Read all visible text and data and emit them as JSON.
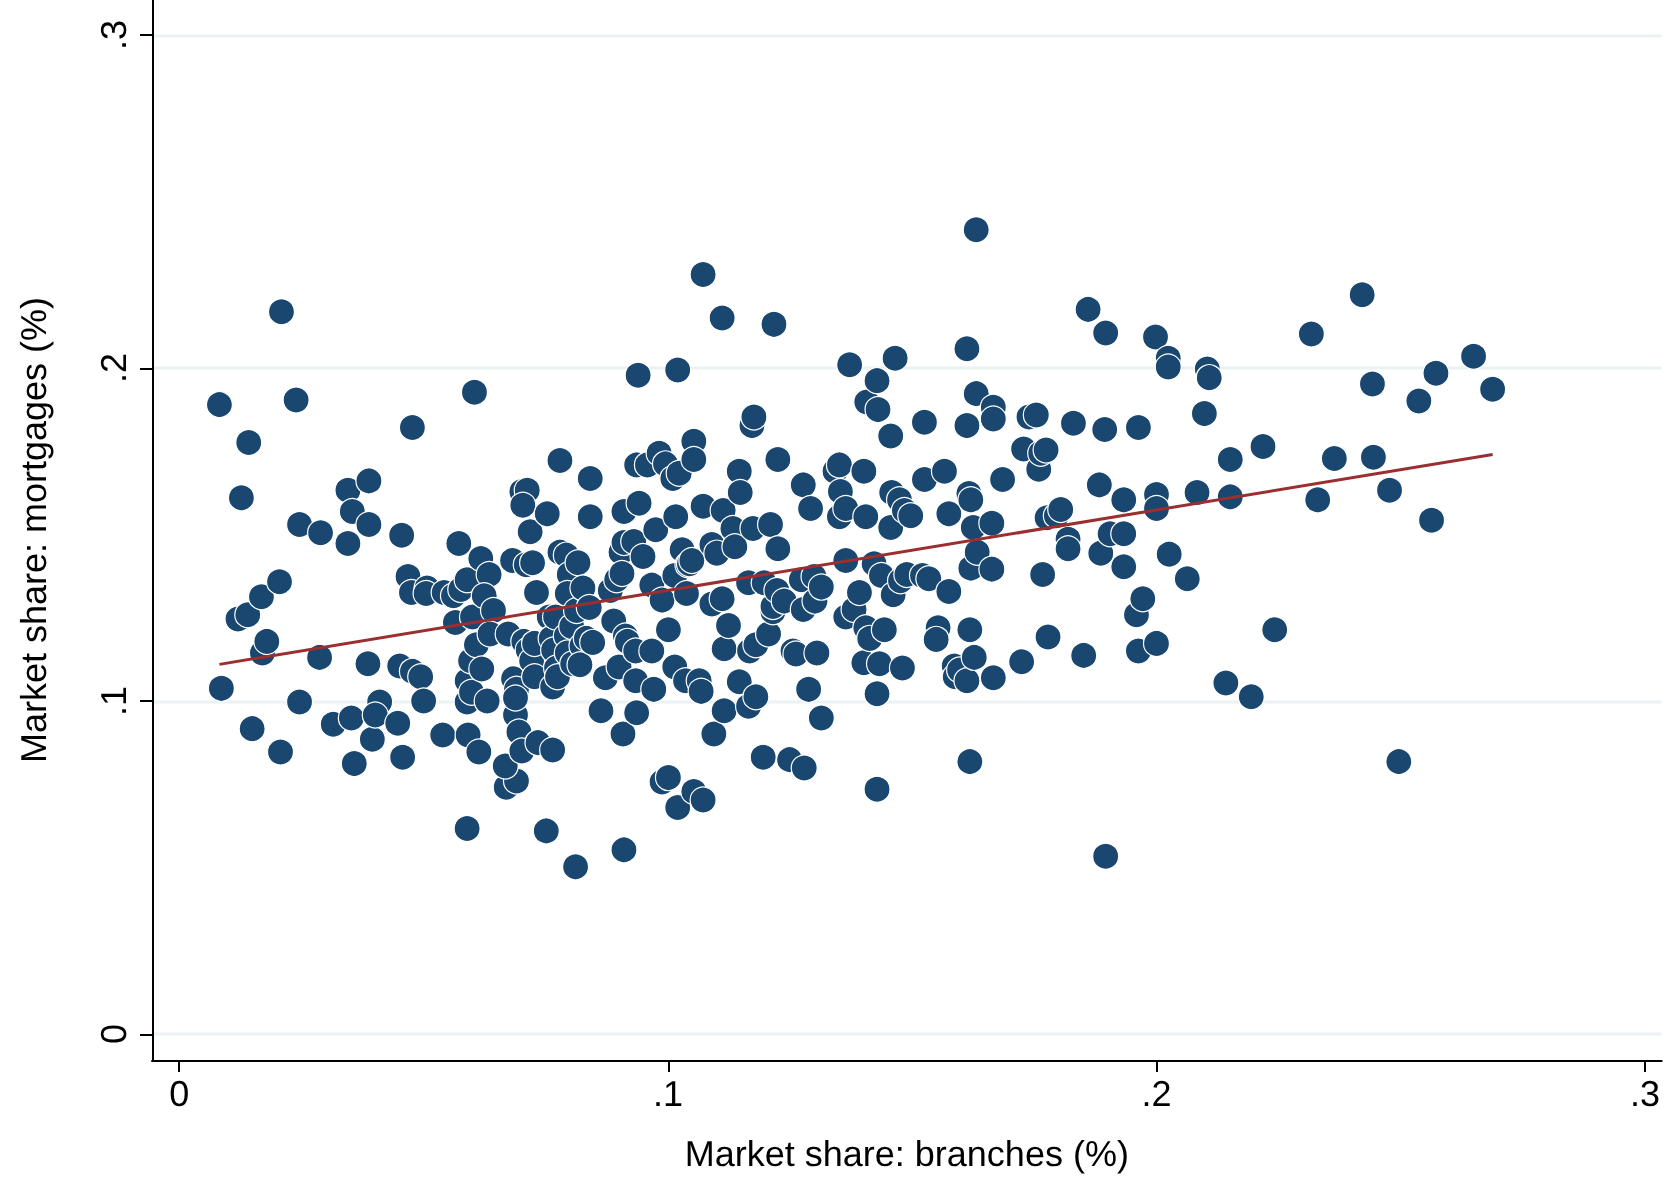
{
  "chart_data": {
    "type": "scatter",
    "xlabel": "Market share: branches (%)",
    "ylabel": "Market share: mortgages (%)",
    "xlim": [
      -0.0056,
      0.3034
    ],
    "ylim": [
      -0.0078,
      0.3105
    ],
    "xticks": [
      0,
      {
        "value": 0.1,
        "label": ".1"
      },
      {
        "value": 0.2,
        "label": ".2"
      },
      {
        "value": 0.3,
        "label": ".3"
      }
    ],
    "yticks": [
      0,
      {
        "value": 0.1,
        "label": ".1"
      },
      {
        "value": 0.2,
        "label": ".2"
      },
      {
        "value": 0.3,
        "label": ".3"
      }
    ],
    "grid": "y",
    "marker": "circle",
    "series": [
      {
        "color": "#1a476f",
        "x": [
          0.0082,
          0.0086,
          0.0127,
          0.0142,
          0.012,
          0.014,
          0.0149,
          0.0168,
          0.017,
          0.0179,
          0.0205,
          0.0207,
          0.0209,
          0.0239,
          0.0246,
          0.0246,
          0.0289,
          0.0287,
          0.0315,
          0.0345,
          0.0354,
          0.0345,
          0.0388,
          0.0388,
          0.0352,
          0.0358,
          0.0386,
          0.0395,
          0.041,
          0.0401,
          0.0447,
          0.0457,
          0.0455,
          0.0477,
          0.0468,
          0.0475,
          0.0507,
          0.0505,
          0.0451,
          0.0477,
          0.0494,
          0.05,
          0.0539,
          0.0542,
          0.0565,
          0.0561,
          0.0572,
          0.0576,
          0.0589,
          0.0589,
          0.0591,
          0.0604,
          0.0589,
          0.0589,
          0.0598,
          0.0596,
          0.0608,
          0.06,
          0.0617,
          0.0634,
          0.0624,
          0.0613,
          0.063,
          0.0619,
          0.0643,
          0.0636,
          0.0669,
          0.069,
          0.0667,
          0.0673,
          0.0682,
          0.0684,
          0.069,
          0.0688,
          0.0695,
          0.0701,
          0.0688,
          0.0701,
          0.0712,
          0.0703,
          0.071,
          0.0718,
          0.0723,
          0.0705,
          0.0714,
          0.0721,
          0.0727,
          0.0731,
          0.0727,
          0.0734,
          0.0751,
          0.0764,
          0.0753,
          0.0757,
          0.0761,
          0.0766,
          0.0764,
          0.0779,
          0.0779,
          0.0792,
          0.0798,
          0.0794,
          0.077,
          0.0772,
          0.0774,
          0.0792,
          0.0794,
          0.0803,
          0.0805,
          0.0813,
          0.0811,
          0.0816,
          0.0826,
          0.0824,
          0.082,
          0.0833,
          0.0841,
          0.0841,
          0.0839,
          0.0846,
          0.0863,
          0.0872,
          0.0882,
          0.0895,
          0.0889,
          0.0904,
          0.091,
          0.091,
          0.0906,
          0.0913,
          0.09,
          0.0917,
          0.0908,
          0.091,
          0.0936,
          0.0941,
          0.0939,
          0.093,
          0.0934,
          0.0934,
          0.0936,
          0.0949,
          0.0958,
          0.0967,
          0.0967,
          0.0971,
          0.0975,
          0.0982,
          0.0988,
          0.0988,
          0.1001,
          0.0995,
          0.1001,
          0.1014,
          0.1014,
          0.1016,
          0.102,
          0.102,
          0.101,
          0.1023,
          0.1029,
          0.1036,
          0.1038,
          0.1041,
          0.1053,
          0.1053,
          0.1044,
          0.1049,
          0.1053,
          0.1064,
          0.1068,
          0.1072,
          0.1072,
          0.1072,
          0.109,
          0.109,
          0.1094,
          0.11,
          0.1111,
          0.1111,
          0.1115,
          0.1113,
          0.1115,
          0.1124,
          0.1133,
          0.1137,
          0.1146,
          0.1148,
          0.1146,
          0.1165,
          0.1165,
          0.1172,
          0.1176,
          0.1174,
          0.1167,
          0.118,
          0.118,
          0.1195,
          0.1197,
          0.1206,
          0.121,
          0.1217,
          0.1215,
          0.1215,
          0.1225,
          0.1225,
          0.1223,
          0.1238,
          0.1249,
          0.1256,
          0.1262,
          0.1277,
          0.1273,
          0.1279,
          0.1277,
          0.1288,
          0.1292,
          0.1299,
          0.1301,
          0.1305,
          0.1314,
          0.1314,
          0.1342,
          0.1351,
          0.1351,
          0.1353,
          0.1364,
          0.1364,
          0.1364,
          0.1372,
          0.1381,
          0.1392,
          0.1401,
          0.1401,
          0.1405,
          0.1407,
          0.1405,
          0.1413,
          0.1422,
          0.1428,
          0.143,
          0.1428,
          0.1428,
          0.1433,
          0.1437,
          0.1443,
          0.1456,
          0.1458,
          0.1465,
          0.1456,
          0.1461,
          0.1474,
          0.1476,
          0.148,
          0.1484,
          0.1489,
          0.1497,
          0.1521,
          0.1525,
          0.1525,
          0.1534,
          0.1553,
          0.1549,
          0.1566,
          0.1575,
          0.1575,
          0.1586,
          0.1588,
          0.1597,
          0.1612,
          0.1612,
          0.1612,
          0.1616,
          0.1618,
          0.162,
          0.1618,
          0.162,
          0.1625,
          0.1627,
          0.1631,
          0.1631,
          0.1633,
          0.1666,
          0.1666,
          0.1663,
          0.1663,
          0.1666,
          0.1685,
          0.1724,
          0.1728,
          0.1739,
          0.1754,
          0.1759,
          0.1763,
          0.1774,
          0.1767,
          0.1776,
          0.1778,
          0.1795,
          0.1804,
          0.1819,
          0.1819,
          0.183,
          0.1851,
          0.186,
          0.1883,
          0.1886,
          0.1896,
          0.1894,
          0.1896,
          0.1905,
          0.1933,
          0.1933,
          0.1933,
          0.1963,
          0.1959,
          0.1963,
          0.1972,
          0.1998,
          0.2,
          0.2,
          0.2,
          0.2024,
          0.2024,
          0.2026,
          0.2063,
          0.2083,
          0.2098,
          0.2104,
          0.2108,
          0.2142,
          0.2151,
          0.2151,
          0.2194,
          0.2218,
          0.2242,
          0.2317,
          0.233,
          0.2364,
          0.2421,
          0.2442,
          0.2444,
          0.2477,
          0.2496,
          0.2537,
          0.2563,
          0.2572,
          0.2649,
          0.2688
        ],
        "values": [
          0.189,
          0.1038,
          0.161,
          0.1776,
          0.1246,
          0.1259,
          0.0917,
          0.1313,
          0.1144,
          0.1179,
          0.1358,
          0.0847,
          0.2169,
          0.1904,
          0.153,
          0.0997,
          0.1505,
          0.1131,
          0.093,
          0.1633,
          0.1569,
          0.1473,
          0.153,
          0.1661,
          0.0949,
          0.0812,
          0.1112,
          0.0885,
          0.0997,
          0.0958,
          0.0933,
          0.0831,
          0.1498,
          0.1821,
          0.1374,
          0.1326,
          0.1339,
          0.1323,
          0.1105,
          0.1089,
          0.1073,
          0.1,
          0.0898,
          0.1326,
          0.1236,
          0.1316,
          0.1473,
          0.1335,
          0.1364,
          0.0617,
          0.0898,
          0.1927,
          0.1061,
          0.0997,
          0.1026,
          0.1121,
          0.1169,
          0.1252,
          0.1428,
          0.138,
          0.1316,
          0.0847,
          0.1,
          0.1096,
          0.1272,
          0.1201,
          0.0741,
          0.076,
          0.0805,
          0.1201,
          0.1422,
          0.1067,
          0.1035,
          0.0958,
          0.0907,
          0.085,
          0.1009,
          0.1629,
          0.1633,
          0.1588,
          0.1409,
          0.1508,
          0.1415,
          0.1179,
          0.1153,
          0.1121,
          0.1173,
          0.1326,
          0.1073,
          0.0875,
          0.061,
          0.0853,
          0.1562,
          0.1252,
          0.1188,
          0.1153,
          0.1042,
          0.1722,
          0.1447,
          0.1438,
          0.138,
          0.1323,
          0.1252,
          0.1099,
          0.1073,
          0.1195,
          0.1144,
          0.1224,
          0.1112,
          0.1272,
          0.0502,
          0.1415,
          0.1339,
          0.1166,
          0.1109,
          0.1188,
          0.1668,
          0.1553,
          0.1281,
          0.1176,
          0.0971,
          0.107,
          0.1332,
          0.1364,
          0.124,
          0.1447,
          0.1569,
          0.1476,
          0.1383,
          0.1195,
          0.1102,
          0.1179,
          0.0901,
          0.0553,
          0.1709,
          0.1594,
          0.1978,
          0.1479,
          0.115,
          0.1061,
          0.0965,
          0.1434,
          0.1709,
          0.1348,
          0.115,
          0.1035,
          0.1514,
          0.1744,
          0.1303,
          0.0757,
          0.077,
          0.1712,
          0.1214,
          0.1377,
          0.1102,
          0.1553,
          0.1994,
          0.068,
          0.1668,
          0.1684,
          0.1454,
          0.1061,
          0.1323,
          0.1409,
          0.178,
          0.1725,
          0.1412,
          0.1422,
          0.0728,
          0.1061,
          0.1029,
          0.0703,
          0.2281,
          0.1585,
          0.1291,
          0.147,
          0.0901,
          0.1444,
          0.1307,
          0.215,
          0.1157,
          0.1572,
          0.0971,
          0.1227,
          0.1518,
          0.1463,
          0.169,
          0.1626,
          0.1058,
          0.1355,
          0.0984,
          0.1827,
          0.1853,
          0.1518,
          0.115,
          0.1013,
          0.1169,
          0.0831,
          0.1355,
          0.1201,
          0.153,
          0.2131,
          0.1268,
          0.1284,
          0.1725,
          0.1457,
          0.1332,
          0.13,
          0.0824,
          0.115,
          0.1141,
          0.1649,
          0.1364,
          0.0799,
          0.1275,
          0.1035,
          0.1578,
          0.1374,
          0.13,
          0.1144,
          0.1342,
          0.0949,
          0.169,
          0.1709,
          0.1553,
          0.1629,
          0.1578,
          0.1422,
          0.1252,
          0.201,
          0.1275,
          0.1326,
          0.169,
          0.1115,
          0.1553,
          0.1898,
          0.122,
          0.1188,
          0.1412,
          0.1962,
          0.1875,
          0.1022,
          0.0735,
          0.1112,
          0.1377,
          0.1214,
          0.1796,
          0.1626,
          0.2029,
          0.1521,
          0.1319,
          0.1604,
          0.1361,
          0.1099,
          0.1572,
          0.138,
          0.1556,
          0.1377,
          0.1837,
          0.1665,
          0.1367,
          0.122,
          0.1185,
          0.169,
          0.1329,
          0.1562,
          0.1105,
          0.1073,
          0.1093,
          0.1061,
          0.2058,
          0.1827,
          0.1623,
          0.0818,
          0.1604,
          0.1214,
          0.1399,
          0.1521,
          0.1131,
          0.1923,
          0.2415,
          0.1447,
          0.1882,
          0.1847,
          0.1534,
          0.1396,
          0.107,
          0.1665,
          0.1118,
          0.1757,
          0.1853,
          0.1859,
          0.1696,
          0.1744,
          0.1754,
          0.138,
          0.155,
          0.1192,
          0.1556,
          0.1575,
          0.1486,
          0.1457,
          0.1834,
          0.1137,
          0.2176,
          0.1649,
          0.1444,
          0.2105,
          0.1815,
          0.0534,
          0.1502,
          0.1604,
          0.1502,
          0.1403,
          0.1821,
          0.1259,
          0.115,
          0.1307,
          0.2093,
          0.162,
          0.1578,
          0.1173,
          0.2029,
          0.2003,
          0.1441,
          0.1367,
          0.1626,
          0.1863,
          0.1997,
          0.1971,
          0.1054,
          0.1725,
          0.1613,
          0.1013,
          0.1764,
          0.1214,
          0.2102,
          0.1604,
          0.1728,
          0.222,
          0.1952,
          0.1732,
          0.1633,
          0.0818,
          0.1901,
          0.1543,
          0.1984,
          0.2035,
          0.1936
        ]
      },
      {
        "type": "line",
        "color": "#9b2f2f",
        "marker": "none",
        "x": [
          0.0082,
          0.2688
        ],
        "values": [
          0.111,
          0.174
        ]
      }
    ]
  }
}
